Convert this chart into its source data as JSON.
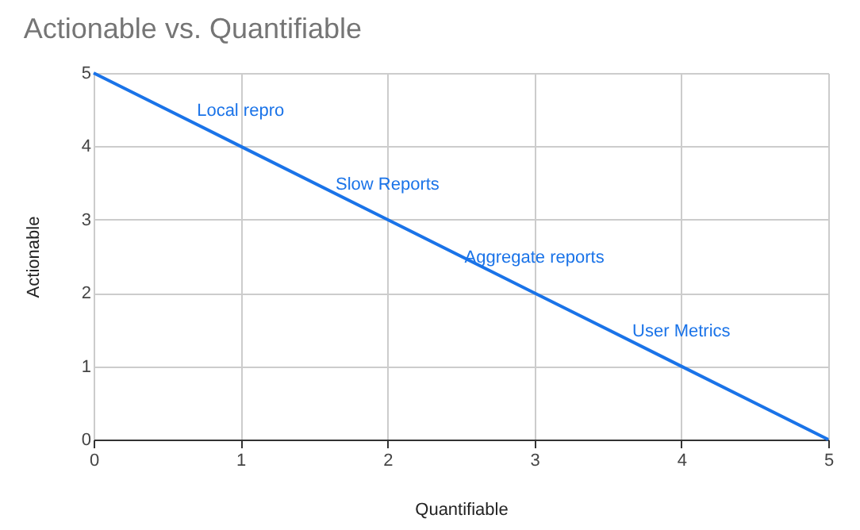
{
  "chart_data": {
    "type": "line",
    "title": "Actionable vs. Quantifiable",
    "xlabel": "Quantifiable",
    "ylabel": "Actionable",
    "x": [
      0,
      1,
      2,
      3,
      4,
      5
    ],
    "series": [
      {
        "color": "#1a73e8",
        "values": [
          5,
          4,
          3,
          2,
          1,
          0
        ]
      }
    ],
    "xlim": [
      0,
      5
    ],
    "xticks": [
      0,
      1,
      2,
      3,
      4,
      5
    ],
    "ylim": [
      0,
      5
    ],
    "yticks": [
      0,
      1,
      2,
      3,
      4,
      5
    ],
    "grid": true,
    "marker": "none",
    "line_style": "solid",
    "annotations": [
      {
        "text": "Local repro",
        "x": 1,
        "y": 4
      },
      {
        "text": "Slow Reports",
        "x": 2,
        "y": 3
      },
      {
        "text": "Aggregate reports",
        "x": 3,
        "y": 2
      },
      {
        "text": "User Metrics",
        "x": 4,
        "y": 1
      }
    ]
  }
}
